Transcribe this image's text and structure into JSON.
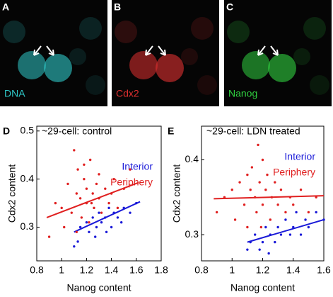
{
  "panels": [
    {
      "letter": "A",
      "label": "DNA",
      "color": "#2fc8c8"
    },
    {
      "letter": "B",
      "label": "Cdx2",
      "color": "#e03030"
    },
    {
      "letter": "C",
      "label": "Nanog",
      "color": "#30d040"
    }
  ],
  "chart_data": [
    {
      "type": "scatter",
      "panel": "D",
      "title": "~29-cell: control",
      "x_label": "Nanog content",
      "y_label": "Cdx2 content",
      "xlim": [
        0.8,
        1.8
      ],
      "xticks": [
        0.8,
        1,
        1.2,
        1.4,
        1.6,
        1.8
      ],
      "ylim": [
        0.23,
        0.51
      ],
      "yticks": [
        0.3,
        0.4,
        0.5
      ],
      "series": [
        {
          "name": "Interior",
          "color": "#1a1ad8",
          "x": [
            1.1,
            1.13,
            1.15,
            1.2,
            1.22,
            1.25,
            1.28,
            1.3,
            1.32,
            1.35,
            1.38,
            1.4,
            1.42,
            1.45,
            1.48,
            1.5,
            1.55,
            1.6,
            1.27,
            1.36
          ],
          "values": [
            0.26,
            0.27,
            0.3,
            0.31,
            0.29,
            0.32,
            0.3,
            0.33,
            0.31,
            0.32,
            0.34,
            0.3,
            0.33,
            0.32,
            0.31,
            0.34,
            0.33,
            0.35,
            0.28,
            0.29
          ],
          "fit_x": [
            1.1,
            1.63
          ],
          "fit_y": [
            0.29,
            0.353
          ]
        },
        {
          "name": "Periphery",
          "color": "#e02020",
          "x": [
            0.9,
            0.95,
            1.0,
            1.02,
            1.05,
            1.08,
            1.1,
            1.12,
            1.13,
            1.15,
            1.16,
            1.18,
            1.2,
            1.2,
            1.22,
            1.23,
            1.25,
            1.26,
            1.28,
            1.3,
            1.3,
            1.32,
            1.35,
            1.38,
            1.4,
            1.42,
            1.45,
            1.5,
            1.55,
            1.12,
            1.18,
            1.24
          ],
          "values": [
            0.28,
            0.35,
            0.34,
            0.3,
            0.39,
            0.33,
            0.46,
            0.37,
            0.42,
            0.36,
            0.32,
            0.4,
            0.35,
            0.38,
            0.31,
            0.44,
            0.37,
            0.34,
            0.39,
            0.36,
            0.41,
            0.33,
            0.38,
            0.35,
            0.37,
            0.4,
            0.34,
            0.38,
            0.42,
            0.29,
            0.43,
            0.35
          ],
          "fit_x": [
            0.88,
            1.62
          ],
          "fit_y": [
            0.32,
            0.393
          ]
        }
      ]
    },
    {
      "type": "scatter",
      "panel": "E",
      "title": "~29-cell: LDN treated",
      "x_label": "Nanog content",
      "y_label": "Cdx2 content",
      "xlim": [
        0.8,
        1.6
      ],
      "xticks": [
        0.8,
        1,
        1.2,
        1.4,
        1.6
      ],
      "ylim": [
        0.265,
        0.445
      ],
      "yticks": [
        0.3,
        0.4
      ],
      "series": [
        {
          "name": "Interior",
          "color": "#1a1ad8",
          "x": [
            1.1,
            1.12,
            1.15,
            1.18,
            1.2,
            1.22,
            1.25,
            1.28,
            1.3,
            1.32,
            1.35,
            1.38,
            1.4,
            1.42,
            1.45,
            1.48,
            1.5,
            1.55,
            1.6,
            1.24
          ],
          "values": [
            0.28,
            0.29,
            0.3,
            0.28,
            0.29,
            0.31,
            0.3,
            0.29,
            0.31,
            0.3,
            0.32,
            0.3,
            0.31,
            0.33,
            0.3,
            0.32,
            0.31,
            0.33,
            0.32,
            0.275
          ],
          "fit_x": [
            1.1,
            1.6
          ],
          "fit_y": [
            0.29,
            0.32
          ]
        },
        {
          "name": "Periphery",
          "color": "#e02020",
          "x": [
            0.9,
            0.95,
            1.0,
            1.02,
            1.05,
            1.08,
            1.1,
            1.1,
            1.12,
            1.13,
            1.15,
            1.16,
            1.18,
            1.2,
            1.2,
            1.22,
            1.23,
            1.25,
            1.26,
            1.28,
            1.3,
            1.32,
            1.35,
            1.38,
            1.4,
            1.45,
            1.5,
            1.55,
            1.17,
            1.19
          ],
          "values": [
            0.33,
            0.35,
            0.36,
            0.32,
            0.37,
            0.34,
            0.38,
            0.31,
            0.36,
            0.39,
            0.35,
            0.33,
            0.37,
            0.4,
            0.34,
            0.36,
            0.38,
            0.32,
            0.35,
            0.37,
            0.34,
            0.36,
            0.33,
            0.35,
            0.34,
            0.36,
            0.33,
            0.35,
            0.42,
            0.31
          ],
          "fit_x": [
            0.88,
            1.6
          ],
          "fit_y": [
            0.348,
            0.352
          ]
        }
      ]
    }
  ]
}
